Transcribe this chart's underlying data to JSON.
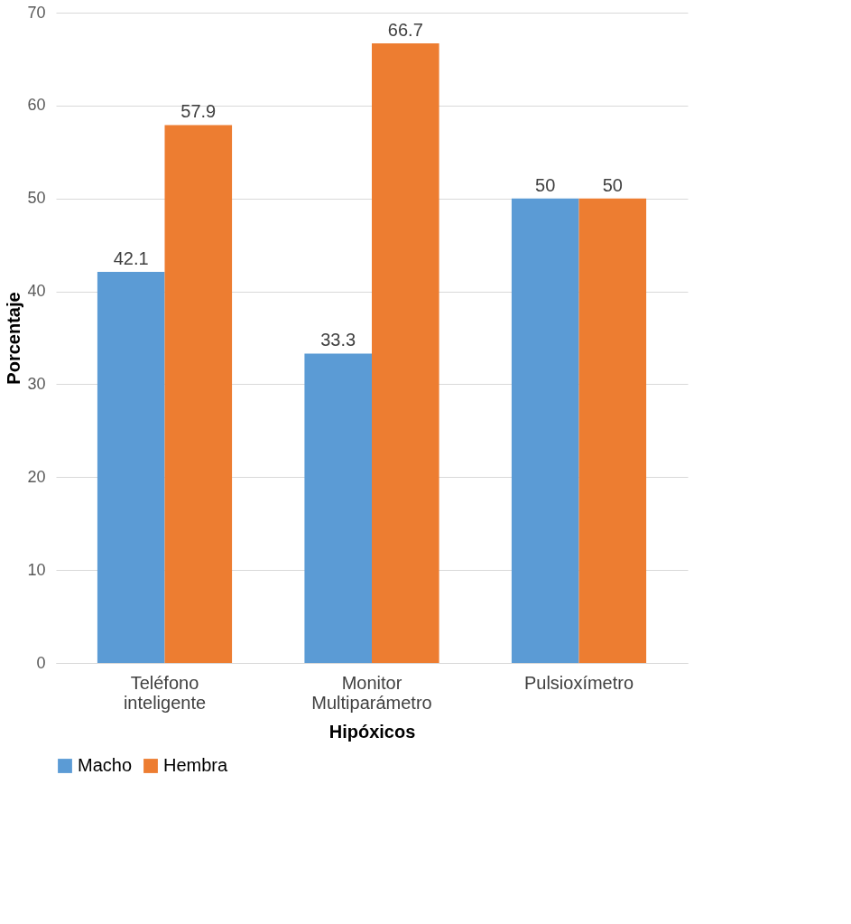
{
  "chart_data": {
    "type": "bar",
    "xlabel": "Hipóxicos",
    "ylabel": "Porcentaje",
    "categories": [
      "Teléfono inteligente",
      "Monitor Multiparámetro",
      "Pulsioxímetro"
    ],
    "series": [
      {
        "name": "Macho",
        "color": "#5b9bd5",
        "values": [
          42.1,
          33.3,
          50
        ]
      },
      {
        "name": "Hembra",
        "color": "#ed7d31",
        "values": [
          57.9,
          66.7,
          50
        ]
      }
    ],
    "ylim": [
      0,
      70
    ],
    "yticks": [
      0,
      10,
      20,
      30,
      40,
      50,
      60,
      70
    ],
    "grid": "y",
    "legend": "bottom",
    "data_labels": true
  }
}
